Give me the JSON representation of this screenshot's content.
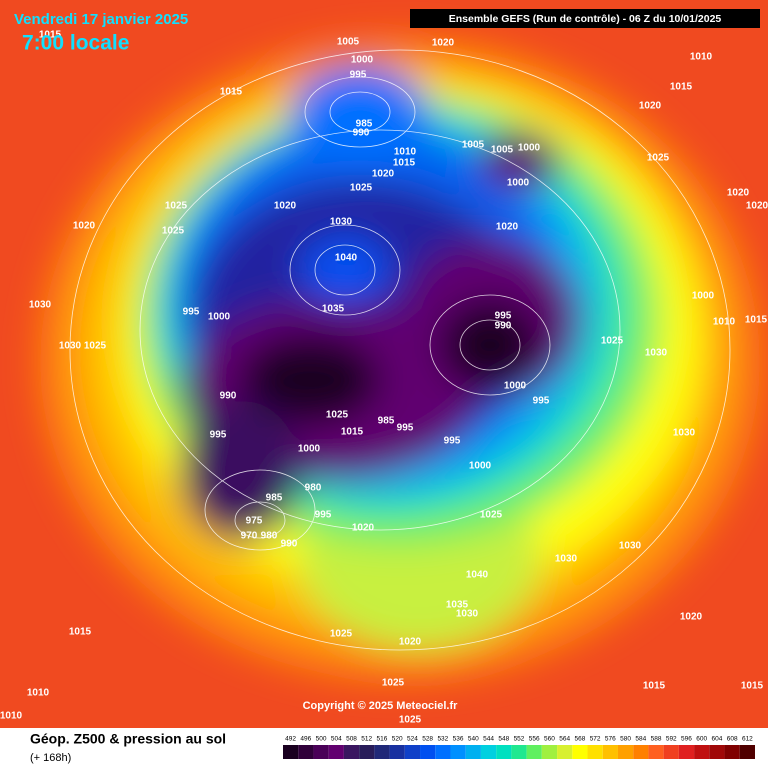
{
  "header": {
    "date": "Vendredi 17 janvier 2025",
    "time": "7:00 locale",
    "model": "Ensemble GEFS  (Run de contrôle)  -  06 Z du 10/01/2025"
  },
  "copyright": "Copyright © 2025 Meteociel.fr",
  "footer": {
    "title": "Géop. Z500 & pression au sol",
    "lead": "(+ 168h)"
  },
  "scale": {
    "labels": [
      492,
      496,
      500,
      504,
      508,
      512,
      516,
      520,
      524,
      528,
      532,
      536,
      540,
      544,
      548,
      552,
      556,
      560,
      564,
      568,
      572,
      576,
      580,
      584,
      588,
      592,
      596,
      600,
      604,
      608,
      612
    ],
    "colors": [
      "#1a0020",
      "#30003a",
      "#4a0058",
      "#620070",
      "#3a1660",
      "#281c5a",
      "#202878",
      "#1830a0",
      "#1040c8",
      "#0050f0",
      "#0070ff",
      "#0090ff",
      "#00b0f0",
      "#00d0e0",
      "#00e0c0",
      "#20e890",
      "#60f060",
      "#a0f040",
      "#d8f030",
      "#ffff00",
      "#ffe000",
      "#ffc000",
      "#ffa000",
      "#ff8000",
      "#ff6020",
      "#f04020",
      "#e02020",
      "#c01010",
      "#a00808",
      "#800000",
      "#500000"
    ]
  },
  "isobar_labels": [
    1015,
    1005,
    1020,
    1010,
    1000,
    995,
    1015,
    1015,
    1020,
    985,
    990,
    1005,
    1005,
    1000,
    1010,
    1015,
    1020,
    1025,
    1000,
    1025,
    1020,
    1020,
    1020,
    1025,
    1025,
    1020,
    1030,
    1020,
    1040,
    1000,
    995,
    1000,
    1035,
    1030,
    995,
    990,
    1010,
    1015,
    1025,
    1030,
    1030,
    1025,
    990,
    1000,
    995,
    1025,
    985,
    995,
    1015,
    995,
    995,
    1030,
    1000,
    1000,
    980,
    985,
    1025,
    995,
    975,
    970,
    980,
    990,
    1020,
    1030,
    1030,
    1040,
    1035,
    1030,
    1025,
    1020,
    1020,
    1015,
    1025,
    1015,
    1015,
    1010,
    1010,
    1025
  ]
}
